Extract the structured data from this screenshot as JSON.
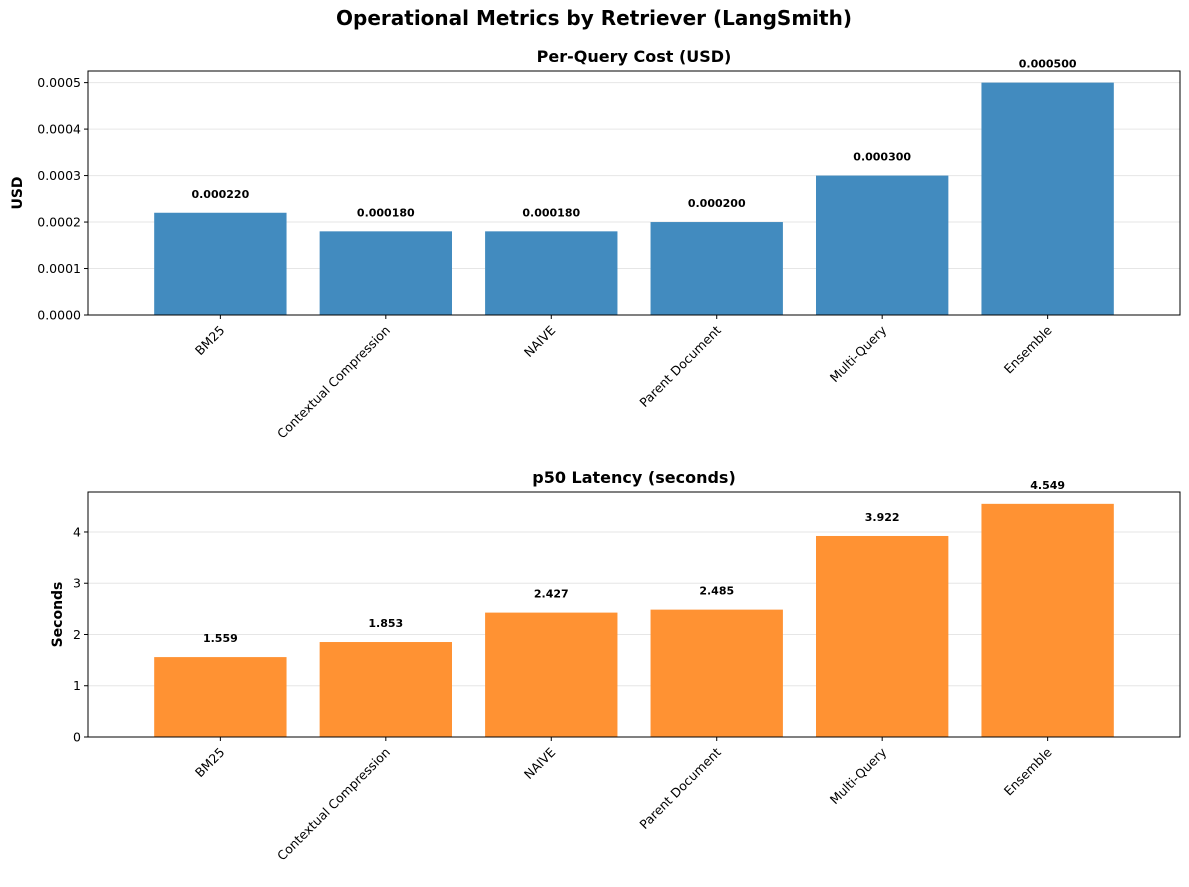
{
  "figure_title": "Operational Metrics by Retriever (LangSmith)",
  "chart_data": [
    {
      "type": "bar",
      "title": "Per-Query Cost (USD)",
      "xlabel": "",
      "ylabel": "USD",
      "categories": [
        "BM25",
        "Contextual Compression",
        "NAIVE",
        "Parent Document",
        "Multi-Query",
        "Ensemble"
      ],
      "values": [
        0.00022,
        0.00018,
        0.00018,
        0.0002,
        0.0003,
        0.0005
      ],
      "value_labels": [
        "0.000220",
        "0.000180",
        "0.000180",
        "0.000200",
        "0.000300",
        "0.000500"
      ],
      "ylim": [
        0,
        0.000525
      ],
      "yticks": [
        0,
        0.0001,
        0.0002,
        0.0003,
        0.0004,
        0.0005
      ],
      "ytick_labels": [
        "0.0000",
        "0.0001",
        "0.0002",
        "0.0003",
        "0.0004",
        "0.0005"
      ],
      "color": "#428bbf",
      "grid": "y"
    },
    {
      "type": "bar",
      "title": "p50 Latency (seconds)",
      "xlabel": "",
      "ylabel": "Seconds",
      "categories": [
        "BM25",
        "Contextual Compression",
        "NAIVE",
        "Parent Document",
        "Multi-Query",
        "Ensemble"
      ],
      "values": [
        1.559,
        1.853,
        2.427,
        2.485,
        3.922,
        4.549
      ],
      "value_labels": [
        "1.559",
        "1.853",
        "2.427",
        "2.485",
        "3.922",
        "4.549"
      ],
      "ylim": [
        0,
        4.78
      ],
      "yticks": [
        0,
        1,
        2,
        3,
        4
      ],
      "ytick_labels": [
        "0",
        "1",
        "2",
        "3",
        "4"
      ],
      "color": "#ff9233",
      "grid": "y"
    }
  ]
}
